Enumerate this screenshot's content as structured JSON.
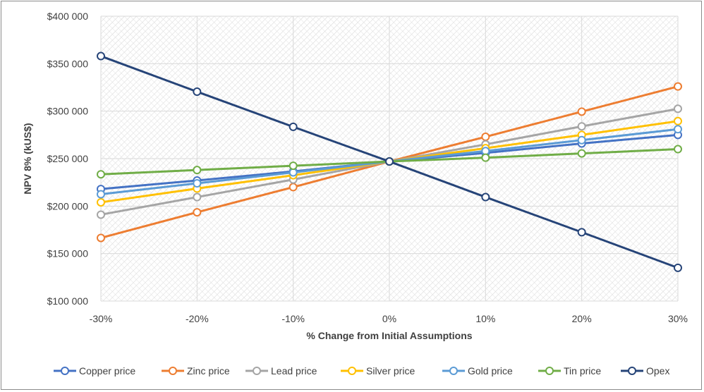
{
  "chart_data": {
    "type": "line",
    "title": "",
    "xlabel": "% Change from Initial Assumptions",
    "ylabel": "NPV 8% (kUS$)",
    "x": [
      -30,
      -20,
      -10,
      0,
      10,
      20,
      30
    ],
    "x_tick_labels": [
      "-30%",
      "-20%",
      "-10%",
      "0%",
      "10%",
      "20%",
      "30%"
    ],
    "y_tick_values": [
      100000,
      150000,
      200000,
      250000,
      300000,
      350000,
      400000
    ],
    "y_tick_labels": [
      "$100 000",
      "$150 000",
      "$200 000",
      "$250 000",
      "$300 000",
      "$350 000",
      "$400 000"
    ],
    "ylim": [
      100000,
      400000
    ],
    "grid": true,
    "legend_position": "bottom",
    "series": [
      {
        "name": "Copper price",
        "color": "#4472C4",
        "values": [
          218000,
          227000,
          236500,
          247000,
          256000,
          266000,
          275000
        ]
      },
      {
        "name": "Zinc price",
        "color": "#ED7D31",
        "values": [
          166500,
          193500,
          220000,
          247000,
          273000,
          299500,
          326000
        ]
      },
      {
        "name": "Lead price",
        "color": "#A5A5A5",
        "values": [
          191000,
          209500,
          228000,
          247000,
          265000,
          284000,
          302500
        ]
      },
      {
        "name": "Silver price",
        "color": "#FFC000",
        "values": [
          204000,
          218500,
          232500,
          247000,
          261000,
          275000,
          289500
        ]
      },
      {
        "name": "Gold price",
        "color": "#5B9BD5",
        "values": [
          212500,
          224000,
          235500,
          247000,
          258000,
          269500,
          281000
        ]
      },
      {
        "name": "Tin price",
        "color": "#70AD47",
        "values": [
          233500,
          238000,
          242500,
          247000,
          251000,
          255500,
          260000
        ]
      },
      {
        "name": "Opex",
        "color": "#264478",
        "values": [
          358000,
          320500,
          283500,
          247000,
          209500,
          172500,
          135000
        ]
      }
    ]
  }
}
